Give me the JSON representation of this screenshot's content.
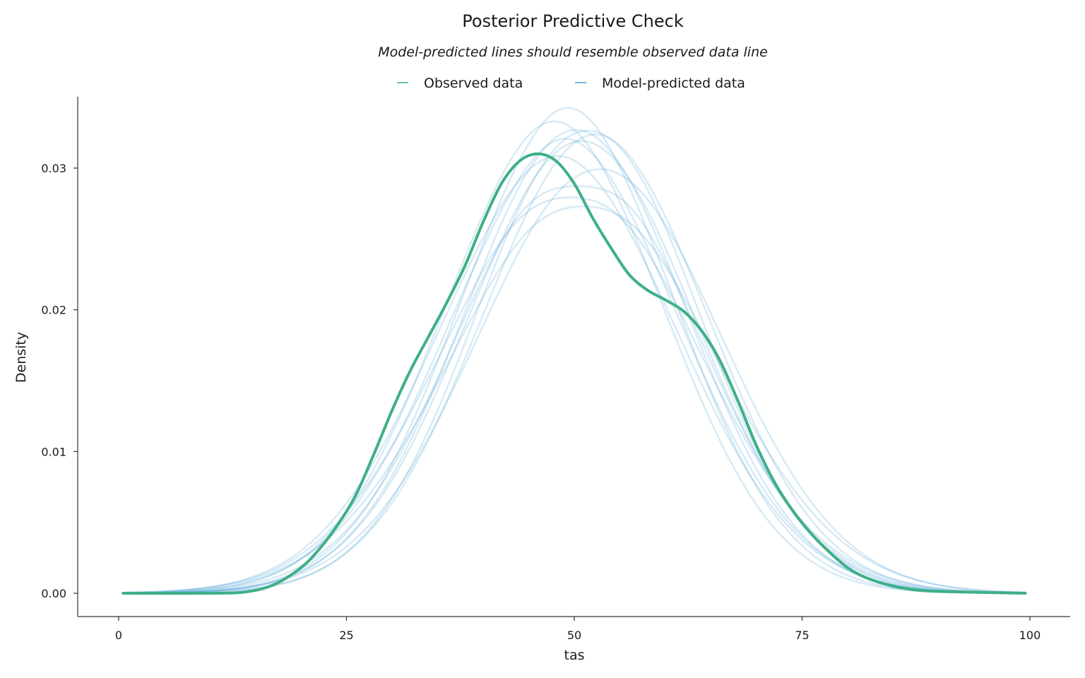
{
  "chart_data": {
    "type": "line",
    "title": "Posterior Predictive Check",
    "subtitle": "Model-predicted lines should resemble observed data line",
    "xlabel": "tas",
    "ylabel": "Density",
    "xlim": [
      0,
      100
    ],
    "ylim": [
      0,
      0.035
    ],
    "x_ticks": [
      0,
      25,
      50,
      75,
      100
    ],
    "y_ticks": [
      0.0,
      0.01,
      0.02,
      0.03
    ],
    "x_tick_labels": [
      "0",
      "25",
      "50",
      "75",
      "100"
    ],
    "y_tick_labels": [
      "0.00",
      "0.01",
      "0.02",
      "0.03"
    ],
    "grid": false,
    "legend": {
      "placement": "top-center",
      "entries": [
        {
          "label": "Observed data",
          "color": "#3eaf87"
        },
        {
          "label": "Model-predicted data",
          "color": "#4a9ed0"
        }
      ]
    },
    "observed": {
      "name": "Observed data",
      "color": "#3eaf87",
      "points": [
        [
          0.5,
          0
        ],
        [
          10,
          0
        ],
        [
          14,
          0.0001
        ],
        [
          17,
          0.0006
        ],
        [
          20,
          0.0018
        ],
        [
          22,
          0.0031
        ],
        [
          24,
          0.0048
        ],
        [
          26,
          0.0069
        ],
        [
          28,
          0.0098
        ],
        [
          30,
          0.0129
        ],
        [
          32,
          0.0157
        ],
        [
          34,
          0.0181
        ],
        [
          36,
          0.0205
        ],
        [
          38,
          0.0231
        ],
        [
          40,
          0.0262
        ],
        [
          42,
          0.0289
        ],
        [
          44,
          0.0305
        ],
        [
          46,
          0.031
        ],
        [
          48,
          0.0305
        ],
        [
          50,
          0.0289
        ],
        [
          52,
          0.0265
        ],
        [
          54,
          0.0244
        ],
        [
          56,
          0.0225
        ],
        [
          58,
          0.0214
        ],
        [
          60,
          0.0207
        ],
        [
          62,
          0.0199
        ],
        [
          64,
          0.0185
        ],
        [
          66,
          0.0164
        ],
        [
          68,
          0.0135
        ],
        [
          70,
          0.0104
        ],
        [
          72,
          0.0078
        ],
        [
          74,
          0.0058
        ],
        [
          76,
          0.0042
        ],
        [
          78,
          0.0029
        ],
        [
          80,
          0.0018
        ],
        [
          82,
          0.0011
        ],
        [
          85,
          0.0005
        ],
        [
          88,
          0.0002
        ],
        [
          92,
          0.0001
        ],
        [
          99.5,
          0
        ]
      ]
    },
    "predicted": {
      "name": "Model-predicted data",
      "color": "#4a9ed0",
      "draws": [
        {
          "mu": 50.2,
          "sd": 12.2,
          "bump": 0.0
        },
        {
          "mu": 49.0,
          "sd": 12.8,
          "bump": 0.0009
        },
        {
          "mu": 51.5,
          "sd": 12.0,
          "bump": -0.0006
        },
        {
          "mu": 48.2,
          "sd": 13.1,
          "bump": 0.0004
        },
        {
          "mu": 50.8,
          "sd": 12.5,
          "bump": 0.0
        },
        {
          "mu": 49.6,
          "sd": 13.6,
          "bump": -0.0014
        },
        {
          "mu": 52.3,
          "sd": 12.4,
          "bump": 0.0002
        },
        {
          "mu": 47.8,
          "sd": 12.2,
          "bump": 0.0006
        },
        {
          "mu": 51.0,
          "sd": 14.0,
          "bump": -0.0012
        },
        {
          "mu": 50.4,
          "sd": 12.9,
          "bump": -0.0022
        },
        {
          "mu": 49.3,
          "sd": 12.0,
          "bump": 0.001
        },
        {
          "mu": 52.8,
          "sd": 13.2,
          "bump": -0.0003
        }
      ]
    }
  }
}
